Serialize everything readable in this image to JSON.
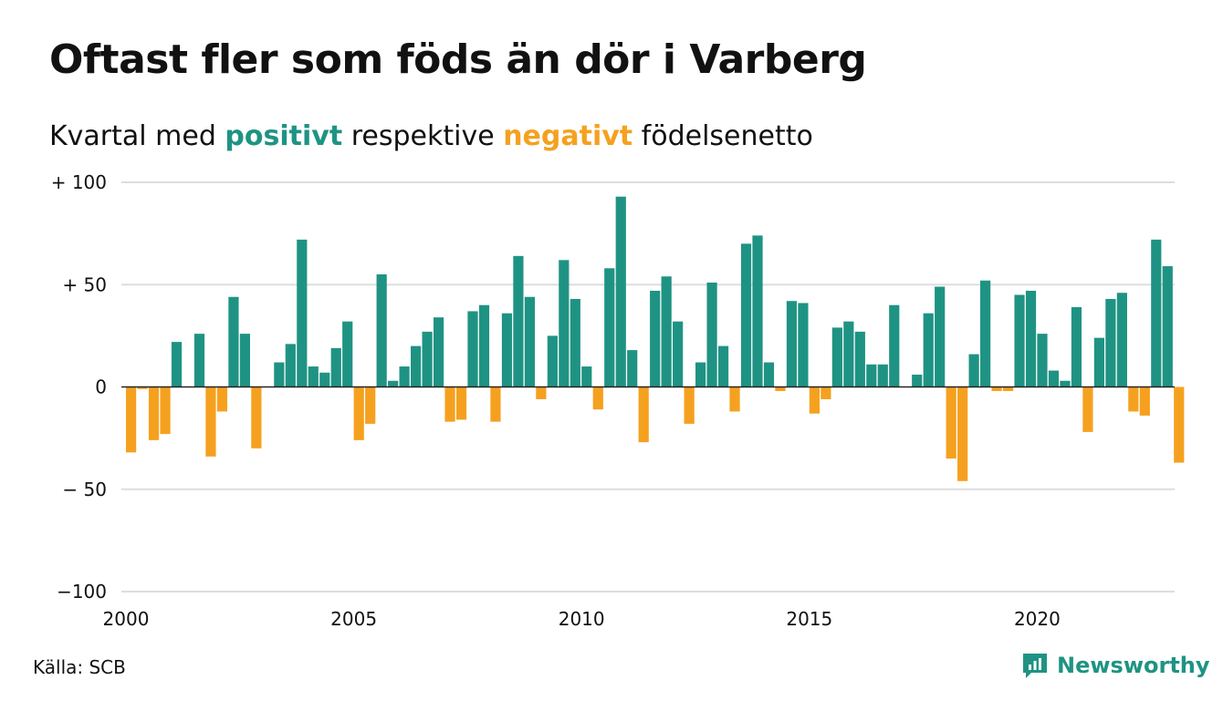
{
  "title": "Oftast fler som föds än dör i Varberg",
  "subtitle": {
    "prefix": "Kvartal med ",
    "positive": "positivt",
    "middle": " respektive ",
    "negative": "negativt",
    "suffix": " födelsenetto"
  },
  "source": "Källa: SCB",
  "brand": {
    "name": "Newsworthy",
    "icon": "newsworthy-logo-icon"
  },
  "colors": {
    "positive": "#1f9383",
    "negative": "#f5a11f",
    "grid": "#dddddd",
    "brand": "#1f9383"
  },
  "chart_data": {
    "type": "bar",
    "title": "Oftast fler som föds än dör i Varberg",
    "subtitle": "Kvartal med positivt respektive negativt födelsenetto",
    "xlabel": "",
    "ylabel": "",
    "ylim": [
      -100,
      100
    ],
    "yticks": [
      {
        "value": 100,
        "label": "+ 100"
      },
      {
        "value": 50,
        "label": "+  50"
      },
      {
        "value": 0,
        "label": "0"
      },
      {
        "value": -50,
        "label": "− 50"
      },
      {
        "value": -100,
        "label": "−100"
      }
    ],
    "xticks": [
      "2000",
      "2005",
      "2010",
      "2015",
      "2020"
    ],
    "grid": true,
    "legend": "none",
    "start": "2000 Q1",
    "frequency": "quarterly",
    "values": [
      -32,
      -1,
      -26,
      -23,
      22,
      0,
      26,
      -34,
      -12,
      44,
      26,
      -30,
      0,
      12,
      21,
      72,
      10,
      7,
      19,
      32,
      -26,
      -18,
      55,
      3,
      10,
      20,
      27,
      34,
      -17,
      -16,
      37,
      40,
      -17,
      36,
      64,
      44,
      -6,
      25,
      62,
      43,
      10,
      -11,
      58,
      93,
      18,
      -27,
      47,
      54,
      32,
      -18,
      12,
      51,
      20,
      -12,
      70,
      74,
      12,
      -2,
      42,
      41,
      -13,
      -6,
      29,
      32,
      27,
      11,
      11,
      40,
      0,
      6,
      36,
      49,
      -35,
      -46,
      16,
      52,
      -2,
      -2,
      45,
      47,
      26,
      8,
      3,
      39,
      -22,
      24,
      43,
      46,
      -12,
      -14,
      72,
      59,
      -37
    ]
  }
}
